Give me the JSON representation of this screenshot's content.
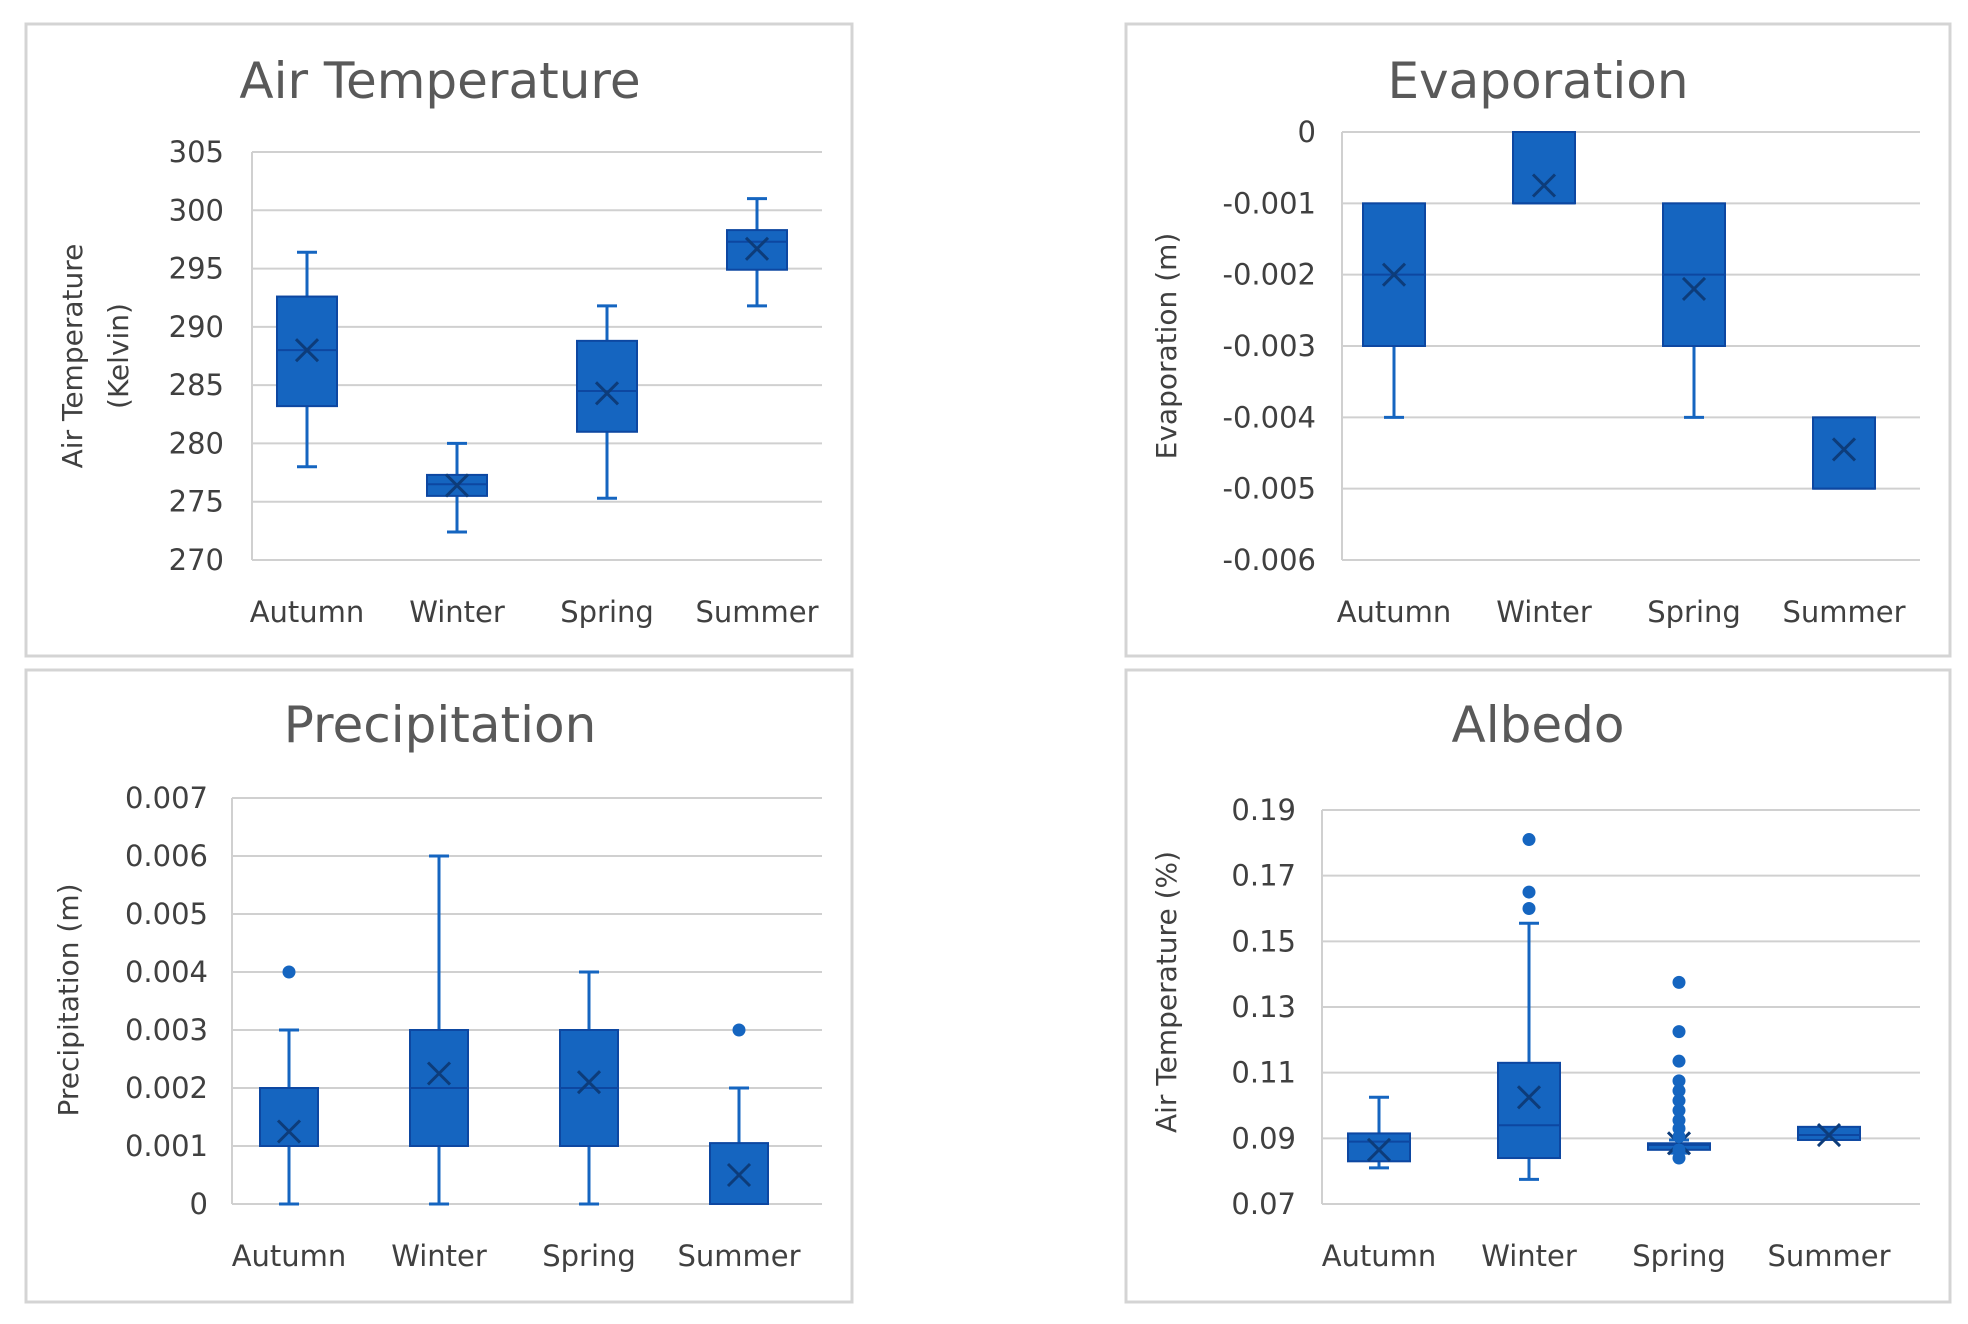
{
  "chart_data": [
    {
      "id": "air",
      "type": "boxplot",
      "title": "Air Temperature",
      "ylabel": [
        "Air Temperature",
        "(Kelvin)"
      ],
      "ylim": [
        270,
        305
      ],
      "yticks": [
        305,
        300,
        295,
        290,
        285,
        280,
        275,
        270
      ],
      "categories": [
        "Autumn",
        "Winter",
        "Spring",
        "Summer"
      ],
      "boxes": [
        {
          "min": 278,
          "q1": 283.2,
          "median": 288,
          "q3": 292.6,
          "max": 296.4,
          "mean": 288,
          "outliers": []
        },
        {
          "min": 272.4,
          "q1": 275.5,
          "median": 276.5,
          "q3": 277.3,
          "max": 280,
          "mean": 276.4,
          "outliers": []
        },
        {
          "min": 275.3,
          "q1": 281,
          "median": 284.5,
          "q3": 288.8,
          "max": 291.8,
          "mean": 284.3,
          "outliers": []
        },
        {
          "min": 291.8,
          "q1": 294.9,
          "median": 297.3,
          "q3": 298.3,
          "max": 301,
          "mean": 296.7,
          "outliers": []
        }
      ]
    },
    {
      "id": "evap",
      "type": "boxplot",
      "title": "Evaporation",
      "ylabel": [
        "Evaporation (m)"
      ],
      "ylim": [
        -0.006,
        0
      ],
      "yticks": [
        "0",
        "-0.001",
        "-0.002",
        "-0.003",
        "-0.004",
        "-0.005",
        "-0.006"
      ],
      "categories": [
        "Autumn",
        "Winter",
        "Spring",
        "Summer"
      ],
      "boxes": [
        {
          "min": -0.004,
          "q1": -0.003,
          "median": -0.002,
          "q3": -0.001,
          "max": -0.001,
          "mean": -0.002,
          "outliers": []
        },
        {
          "min": -0.001,
          "q1": -0.001,
          "median": -0.001,
          "q3": 0,
          "max": 0,
          "mean": -0.00075,
          "outliers": []
        },
        {
          "min": -0.004,
          "q1": -0.003,
          "median": -0.002,
          "q3": -0.001,
          "max": -0.001,
          "mean": -0.0022,
          "outliers": []
        },
        {
          "min": -0.005,
          "q1": -0.005,
          "median": -0.005,
          "q3": -0.004,
          "max": -0.004,
          "mean": -0.00445,
          "outliers": []
        }
      ]
    },
    {
      "id": "precip",
      "type": "boxplot",
      "title": "Precipitation",
      "ylabel": [
        "Precipitation (m)"
      ],
      "ylim": [
        0,
        0.007
      ],
      "yticks": [
        "0.007",
        "0.006",
        "0.005",
        "0.004",
        "0.003",
        "0.002",
        "0.001",
        "0"
      ],
      "categories": [
        "Autumn",
        "Winter",
        "Spring",
        "Summer"
      ],
      "boxes": [
        {
          "min": 0,
          "q1": 0.001,
          "median": 0.001,
          "q3": 0.002,
          "max": 0.003,
          "mean": 0.00125,
          "outliers": [
            0.004
          ]
        },
        {
          "min": 0,
          "q1": 0.001,
          "median": 0.002,
          "q3": 0.003,
          "max": 0.006,
          "mean": 0.00225,
          "outliers": []
        },
        {
          "min": 0,
          "q1": 0.001,
          "median": 0.002,
          "q3": 0.003,
          "max": 0.004,
          "mean": 0.0021,
          "outliers": []
        },
        {
          "min": 0,
          "q1": 0,
          "median": 0,
          "q3": 0.00105,
          "max": 0.002,
          "mean": 0.0005,
          "outliers": [
            0.003
          ]
        }
      ]
    },
    {
      "id": "albedo",
      "type": "boxplot",
      "title": "Albedo",
      "ylabel": [
        "Air Temperature (%)"
      ],
      "ylim": [
        0.07,
        0.19
      ],
      "yticks": [
        "0.19",
        "0.17",
        "0.15",
        "0.13",
        "0.11",
        "0.09",
        "0.07"
      ],
      "categories": [
        "Autumn",
        "Winter",
        "Spring",
        "Summer"
      ],
      "boxes": [
        {
          "min": 0.081,
          "q1": 0.083,
          "median": 0.089,
          "q3": 0.0915,
          "max": 0.1025,
          "mean": 0.0865,
          "outliers": []
        },
        {
          "min": 0.0775,
          "q1": 0.084,
          "median": 0.094,
          "q3": 0.113,
          "max": 0.1555,
          "mean": 0.1025,
          "outliers": [
            0.181,
            0.165,
            0.16
          ]
        },
        {
          "min": 0.0855,
          "q1": 0.0865,
          "median": 0.088,
          "q3": 0.0885,
          "max": 0.0895,
          "mean": 0.0885,
          "outliers": [
            0.1375,
            0.1225,
            0.1135,
            0.1075,
            0.1045,
            0.1015,
            0.0985,
            0.0955,
            0.093,
            0.0905,
            0.0865,
            0.084
          ]
        },
        {
          "min": 0.0895,
          "q1": 0.0895,
          "median": 0.091,
          "q3": 0.0935,
          "max": 0.0935,
          "mean": 0.091,
          "outliers": []
        }
      ]
    }
  ]
}
